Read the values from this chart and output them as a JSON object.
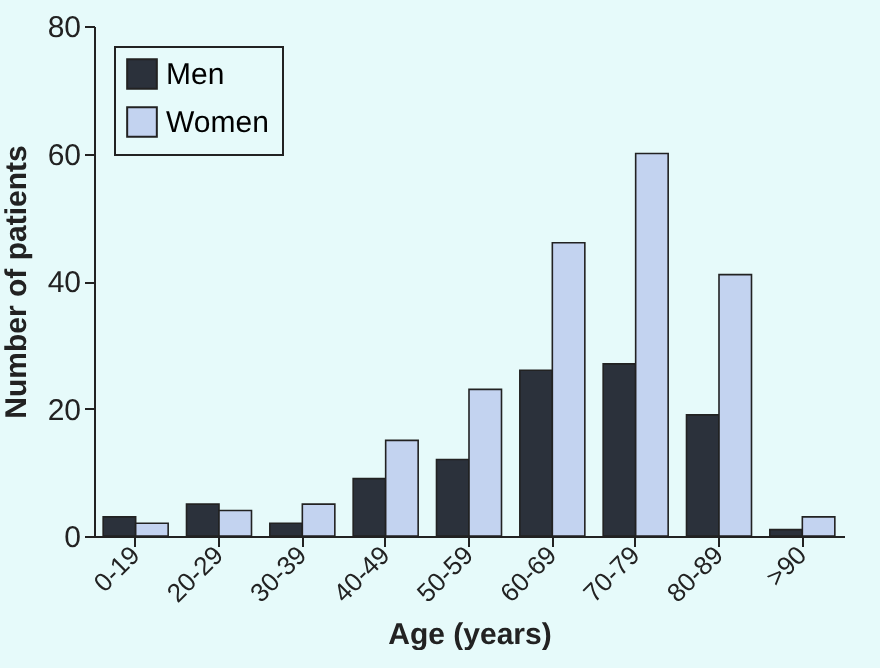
{
  "chart_data": {
    "type": "bar",
    "xlabel": "Age (years)",
    "ylabel": "Number of patients",
    "categories": [
      "0-19",
      "20-29",
      "30-39",
      "40-49",
      "50-59",
      "60-69",
      "70-79",
      "80-89",
      ">90"
    ],
    "series": [
      {
        "name": "Men",
        "color": "#2b313b",
        "values": [
          3,
          5,
          2,
          9,
          12,
          26,
          27,
          19,
          1
        ]
      },
      {
        "name": "Women",
        "color": "#c3d3f0",
        "values": [
          2,
          4,
          5,
          15,
          23,
          46,
          60,
          41,
          3
        ]
      }
    ],
    "ylim": [
      0,
      80
    ],
    "yticks": [
      0,
      20,
      40,
      60,
      80
    ],
    "legend": "top left"
  }
}
